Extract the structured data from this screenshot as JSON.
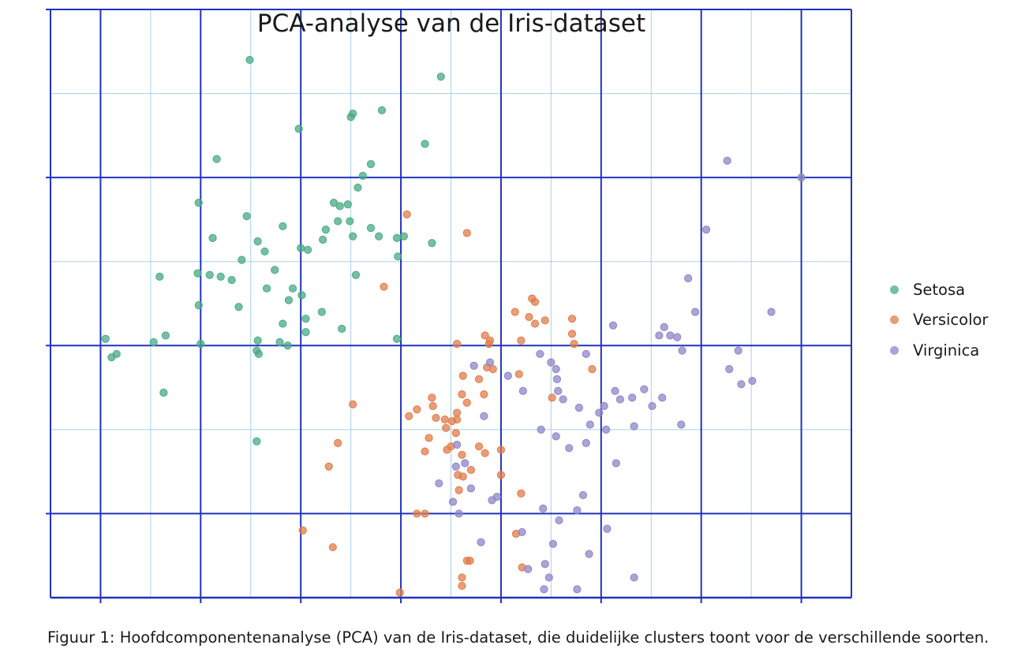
{
  "caption": "Figuur 1: Hoofdcomponentenanalyse (PCA) van de Iris-dataset, die duidelijke clusters toont voor de verschillende soorten.",
  "chart_data": {
    "type": "scatter",
    "title": "PCA-analyse van de Iris-dataset",
    "xlabel": "",
    "ylabel": "",
    "xlim": [
      -3.5,
      4.5
    ],
    "ylim": [
      -1.5,
      2.0
    ],
    "grid": true,
    "legend_position": "right",
    "series": [
      {
        "name": "Setosa",
        "color": "#4aaa85",
        "points": [
          [
            -1.84,
            1.11
          ],
          [
            -1.51,
            1.7
          ],
          [
            -1.02,
            1.29
          ],
          [
            -0.48,
            1.38
          ],
          [
            -0.5,
            1.36
          ],
          [
            -0.19,
            1.4
          ],
          [
            -0.03,
            0.53
          ],
          [
            0.31,
            0.61
          ],
          [
            0.4,
            1.6
          ],
          [
            0.24,
            1.2
          ],
          [
            -0.67,
            0.85
          ],
          [
            -2.02,
            0.85
          ],
          [
            -1.88,
            0.64
          ],
          [
            -1.59,
            0.51
          ],
          [
            -1.54,
            0.77
          ],
          [
            -1.43,
            0.62
          ],
          [
            -0.61,
            0.83
          ],
          [
            -0.53,
            0.84
          ],
          [
            -0.51,
            0.74
          ],
          [
            -0.43,
            0.94
          ],
          [
            -0.38,
            1.01
          ],
          [
            -0.3,
            1.08
          ],
          [
            -1.18,
            0.71
          ],
          [
            -1.36,
            0.56
          ],
          [
            -0.63,
            0.74
          ],
          [
            -0.75,
            0.69
          ],
          [
            -0.48,
            0.65
          ],
          [
            -0.3,
            0.7
          ],
          [
            -0.04,
            0.64
          ],
          [
            0.03,
            0.65
          ],
          [
            -2.03,
            0.43
          ],
          [
            -1.91,
            0.42
          ],
          [
            -1.8,
            0.41
          ],
          [
            -1.69,
            0.39
          ],
          [
            -0.45,
            0.42
          ],
          [
            -0.22,
            0.65
          ],
          [
            -1.34,
            0.34
          ],
          [
            -1.62,
            0.23
          ],
          [
            -0.93,
            0.57
          ],
          [
            -2.41,
            0.41
          ],
          [
            -2.02,
            0.24
          ],
          [
            -1.0,
            0.58
          ],
          [
            -0.78,
            0.63
          ],
          [
            -0.79,
            0.2
          ],
          [
            -1.26,
            0.45
          ],
          [
            -2.35,
            0.06
          ],
          [
            -1.43,
            0.03
          ],
          [
            -1.12,
            0.27
          ],
          [
            -0.99,
            0.3
          ],
          [
            -0.95,
            0.16
          ],
          [
            -1.08,
            0.34
          ],
          [
            -1.18,
            0.13
          ],
          [
            -0.59,
            0.1
          ],
          [
            -0.04,
            0.04
          ],
          [
            -1.21,
            0.02
          ],
          [
            -1.13,
            0.0
          ],
          [
            -2.47,
            0.02
          ],
          [
            -2.0,
            0.01
          ],
          [
            -0.95,
            0.08
          ],
          [
            -2.89,
            -0.07
          ],
          [
            -2.95,
            0.04
          ],
          [
            -2.84,
            -0.05
          ],
          [
            -1.42,
            -0.05
          ],
          [
            -1.44,
            -0.57
          ],
          [
            -2.37,
            -0.28
          ],
          [
            -1.44,
            -0.03
          ]
        ]
      },
      {
        "name": "Versicolor",
        "color": "#e07d4b",
        "points": [
          [
            0.06,
            0.78
          ],
          [
            0.66,
            0.67
          ],
          [
            -0.17,
            0.35
          ],
          [
            1.34,
            0.26
          ],
          [
            1.31,
            0.28
          ],
          [
            1.14,
            0.2
          ],
          [
            1.28,
            0.17
          ],
          [
            1.44,
            0.15
          ],
          [
            1.34,
            0.13
          ],
          [
            1.71,
            0.16
          ],
          [
            1.71,
            0.07
          ],
          [
            0.84,
            0.06
          ],
          [
            0.89,
            0.03
          ],
          [
            1.2,
            0.03
          ],
          [
            1.73,
            0.01
          ],
          [
            1.91,
            -0.14
          ],
          [
            1.18,
            -0.17
          ],
          [
            0.56,
            0.01
          ],
          [
            0.88,
            0.01
          ],
          [
            0.86,
            -0.13
          ],
          [
            0.92,
            -0.14
          ],
          [
            0.62,
            -0.18
          ],
          [
            0.78,
            -0.2
          ],
          [
            0.83,
            -0.29
          ],
          [
            0.61,
            -0.29
          ],
          [
            1.51,
            -0.31
          ],
          [
            0.31,
            -0.31
          ],
          [
            0.32,
            -0.36
          ],
          [
            0.66,
            -0.34
          ],
          [
            0.16,
            -0.38
          ],
          [
            0.35,
            -0.43
          ],
          [
            -0.48,
            -0.35
          ],
          [
            0.28,
            -0.55
          ],
          [
            0.45,
            -0.49
          ],
          [
            0.56,
            -0.4
          ],
          [
            0.44,
            -0.44
          ],
          [
            0.08,
            -0.42
          ],
          [
            0.51,
            -0.45
          ],
          [
            0.55,
            -0.52
          ],
          [
            0.56,
            -0.44
          ],
          [
            0.24,
            -0.63
          ],
          [
            0.5,
            -0.6
          ],
          [
            0.46,
            -0.62
          ],
          [
            -0.63,
            -0.58
          ],
          [
            -0.72,
            -0.72
          ],
          [
            0.61,
            -0.65
          ],
          [
            0.62,
            -0.78
          ],
          [
            0.57,
            -0.77
          ],
          [
            0.84,
            -0.64
          ],
          [
            0.7,
            -0.74
          ],
          [
            0.58,
            -0.86
          ],
          [
            0.78,
            -0.6
          ],
          [
            1.0,
            -0.62
          ],
          [
            1.0,
            -0.77
          ],
          [
            1.2,
            -0.88
          ],
          [
            0.24,
            -1.0
          ],
          [
            0.16,
            -1.0
          ],
          [
            -0.98,
            -1.1
          ],
          [
            -0.68,
            -1.2
          ],
          [
            0.66,
            -1.28
          ],
          [
            0.69,
            -1.28
          ],
          [
            0.61,
            -1.38
          ],
          [
            0.61,
            -1.43
          ],
          [
            1.21,
            -1.32
          ],
          [
            1.15,
            -1.12
          ],
          [
            -0.01,
            -1.47
          ]
        ]
      },
      {
        "name": "Virginica",
        "color": "#8f86c8",
        "points": [
          [
            3.26,
            1.1
          ],
          [
            3.05,
            0.69
          ],
          [
            3.7,
            0.2
          ],
          [
            4.0,
            1.0
          ],
          [
            2.87,
            0.4
          ],
          [
            2.81,
            -0.03
          ],
          [
            2.63,
            0.11
          ],
          [
            2.76,
            0.05
          ],
          [
            2.58,
            0.06
          ],
          [
            2.69,
            0.06
          ],
          [
            2.94,
            0.2
          ],
          [
            3.28,
            -0.14
          ],
          [
            3.37,
            -0.03
          ],
          [
            3.51,
            -0.21
          ],
          [
            3.4,
            -0.23
          ],
          [
            2.8,
            -0.47
          ],
          [
            2.12,
            0.12
          ],
          [
            1.85,
            -0.05
          ],
          [
            1.55,
            -0.14
          ],
          [
            1.57,
            -0.27
          ],
          [
            1.62,
            -0.32
          ],
          [
            1.39,
            -0.05
          ],
          [
            1.5,
            -0.1
          ],
          [
            1.56,
            -0.2
          ],
          [
            1.78,
            -0.37
          ],
          [
            1.98,
            -0.4
          ],
          [
            1.89,
            -0.47
          ],
          [
            1.4,
            -0.5
          ],
          [
            1.85,
            -0.58
          ],
          [
            1.68,
            -0.61
          ],
          [
            1.55,
            -0.54
          ],
          [
            0.73,
            -0.12
          ],
          [
            0.89,
            -0.1
          ],
          [
            1.07,
            -0.18
          ],
          [
            1.22,
            -0.27
          ],
          [
            1.82,
            -0.89
          ],
          [
            2.06,
            -1.09
          ],
          [
            2.05,
            -0.5
          ],
          [
            2.15,
            -0.7
          ],
          [
            2.33,
            -0.48
          ],
          [
            2.14,
            -0.27
          ],
          [
            2.03,
            -0.36
          ],
          [
            2.19,
            -0.32
          ],
          [
            2.43,
            -0.26
          ],
          [
            2.51,
            -0.36
          ],
          [
            2.61,
            -0.31
          ],
          [
            0.83,
            -0.42
          ],
          [
            0.56,
            -0.59
          ],
          [
            0.64,
            -0.7
          ],
          [
            0.55,
            -0.72
          ],
          [
            0.7,
            -0.85
          ],
          [
            0.91,
            -0.92
          ],
          [
            1.58,
            -1.04
          ],
          [
            2.31,
            -0.31
          ],
          [
            1.76,
            -0.98
          ],
          [
            1.42,
            -0.97
          ],
          [
            1.21,
            -1.11
          ],
          [
            1.44,
            -1.3
          ],
          [
            0.96,
            -0.9
          ],
          [
            0.38,
            -0.82
          ],
          [
            0.52,
            -0.93
          ],
          [
            0.58,
            -1.0
          ],
          [
            1.27,
            -1.33
          ],
          [
            1.48,
            -1.38
          ],
          [
            1.43,
            -1.45
          ],
          [
            1.76,
            -1.45
          ],
          [
            2.33,
            -1.38
          ],
          [
            1.88,
            -1.24
          ],
          [
            1.52,
            -1.18
          ],
          [
            0.8,
            -1.17
          ]
        ]
      }
    ]
  }
}
